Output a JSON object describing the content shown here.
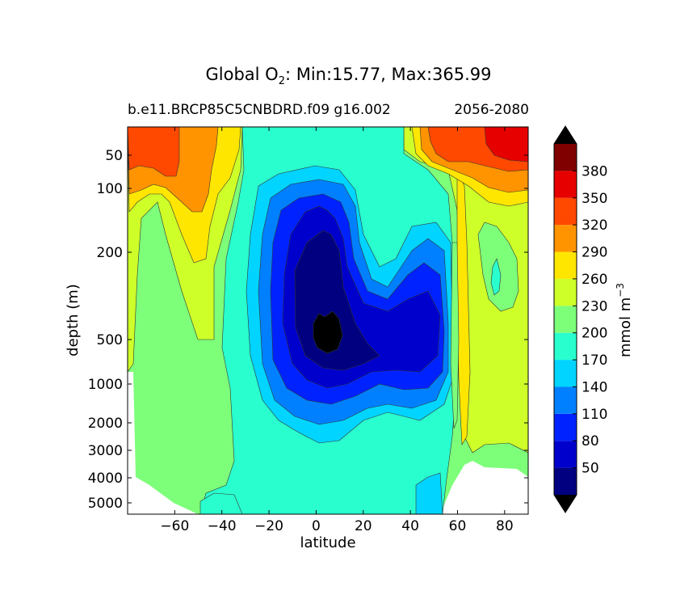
{
  "title": {
    "prefix": "Global O",
    "subscript": "2",
    "suffix": ": Min:15.77, Max:365.99"
  },
  "subtitle_left": "b.e11.BRCP85C5CNBDRD.f09 g16.002",
  "subtitle_right": "2056-2080",
  "chart_data": {
    "type": "contour",
    "title": "Global O2: Min:15.77, Max:365.99",
    "xlabel": "latitude",
    "ylabel": "depth (m)",
    "xlim": [
      -80,
      90
    ],
    "ylim": [
      5500,
      20
    ],
    "yscale": "depth-stretched (inverted)",
    "x_ticks": [
      -60,
      -40,
      -20,
      0,
      20,
      40,
      60,
      80
    ],
    "x_tick_labels": [
      "−60",
      "−40",
      "−20",
      "0",
      "20",
      "40",
      "60",
      "80"
    ],
    "y_ticks": [
      50,
      100,
      200,
      500,
      1000,
      2000,
      3000,
      4000,
      5000
    ],
    "y_tick_labels": [
      "50",
      "100",
      "200",
      "500",
      "1000",
      "2000",
      "3000",
      "4000",
      "5000"
    ],
    "min": 15.77,
    "max": 365.99,
    "colorbar": {
      "label": "mmol m",
      "label_exponent": "−3",
      "levels": [
        20,
        50,
        80,
        110,
        140,
        170,
        200,
        230,
        260,
        290,
        320,
        350,
        380,
        410
      ],
      "tick_labels": [
        "50",
        "80",
        "110",
        "140",
        "170",
        "200",
        "230",
        "260",
        "290",
        "320",
        "350",
        "380"
      ],
      "colors": [
        "#000080",
        "#0000cd",
        "#0022ff",
        "#0080ff",
        "#00d4ff",
        "#29ffce",
        "#7dff7a",
        "#ceff29",
        "#ffe600",
        "#ff9400",
        "#ff4800",
        "#e60000",
        "#800000"
      ],
      "under_color": "#000000",
      "over_color": "#000000",
      "extend": "both"
    },
    "description_values": {
      "oxygen_minimum_zone_core_lat": [
        0,
        10
      ],
      "oxygen_minimum_zone_core_depth_m": [
        350,
        800
      ],
      "surface_high_latitudes_value": 380
    }
  }
}
